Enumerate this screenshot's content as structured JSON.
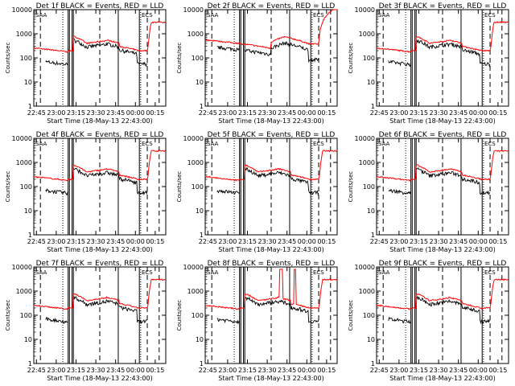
{
  "chart_data": [
    {
      "type": "line",
      "title": "Det 1f BLACK = Events, RED = LLD",
      "ylabel": "Counts/sec",
      "xlabel": "Start Time (18-May-13 22:43:00)"
    },
    {
      "type": "line",
      "title": "Det 2f BLACK = Events, RED = LLD",
      "ylabel": "Counts/sec",
      "xlabel": "Start Time (18-May-13 22:43:00)"
    },
    {
      "type": "line",
      "title": "Det 3f BLACK = Events, RED = LLD",
      "ylabel": "Counts/sec",
      "xlabel": "Start Time (18-May-13 22:43:00)"
    },
    {
      "type": "line",
      "title": "Det 4f BLACK = Events, RED = LLD",
      "ylabel": "Counts/sec",
      "xlabel": "Start Time (18-May-13 22:43:00)"
    },
    {
      "type": "line",
      "title": "Det 5f BLACK = Events, RED = LLD",
      "ylabel": "Counts/sec",
      "xlabel": "Start Time (18-May-13 22:43:00)"
    },
    {
      "type": "line",
      "title": "Det 6f BLACK = Events, RED = LLD",
      "ylabel": "Counts/sec",
      "xlabel": "Start Time (18-May-13 22:43:00)"
    },
    {
      "type": "line",
      "title": "Det 7f BLACK = Events, RED = LLD",
      "ylabel": "Counts/sec",
      "xlabel": "Start Time (18-May-13 22:43:00)"
    },
    {
      "type": "line",
      "title": "Det 8f BLACK = Events, RED = LLD",
      "ylabel": "Counts/sec",
      "xlabel": "Start Time (18-May-13 22:43:00)"
    },
    {
      "type": "line",
      "title": "Det 9f BLACK = Events, RED = LLD",
      "ylabel": "Counts/sec",
      "xlabel": "Start Time (18-May-13 22:43:00)"
    }
  ],
  "shared": {
    "x_range_minutes": [
      0,
      100
    ],
    "y_log_range": [
      1,
      10000
    ],
    "y_ticks": [
      {
        "value": 1,
        "label": "1"
      },
      {
        "value": 10,
        "label": "10"
      },
      {
        "value": 100,
        "label": "100"
      },
      {
        "value": 1000,
        "label": "1000"
      },
      {
        "value": 10000,
        "label": "10000"
      }
    ],
    "x_ticks": [
      {
        "value": 2,
        "label": "22:45"
      },
      {
        "value": 17,
        "label": "23:00"
      },
      {
        "value": 32,
        "label": "23:15"
      },
      {
        "value": 47,
        "label": "23:30"
      },
      {
        "value": 62,
        "label": "23:45"
      },
      {
        "value": 77,
        "label": "00:00"
      },
      {
        "value": 92,
        "label": "00:15"
      }
    ],
    "corner_labels": [
      "SAA",
      "ECS"
    ],
    "series_names": [
      "Events",
      "LLD"
    ],
    "colors": {
      "events": "#000000",
      "lld": "#ff0000",
      "axes": "#000000"
    },
    "markers": {
      "dashed": [
        5,
        50,
        86,
        95
      ],
      "dotted": [
        22,
        81
      ],
      "solid": [
        26,
        27,
        29,
        30,
        64,
        80
      ]
    }
  }
}
